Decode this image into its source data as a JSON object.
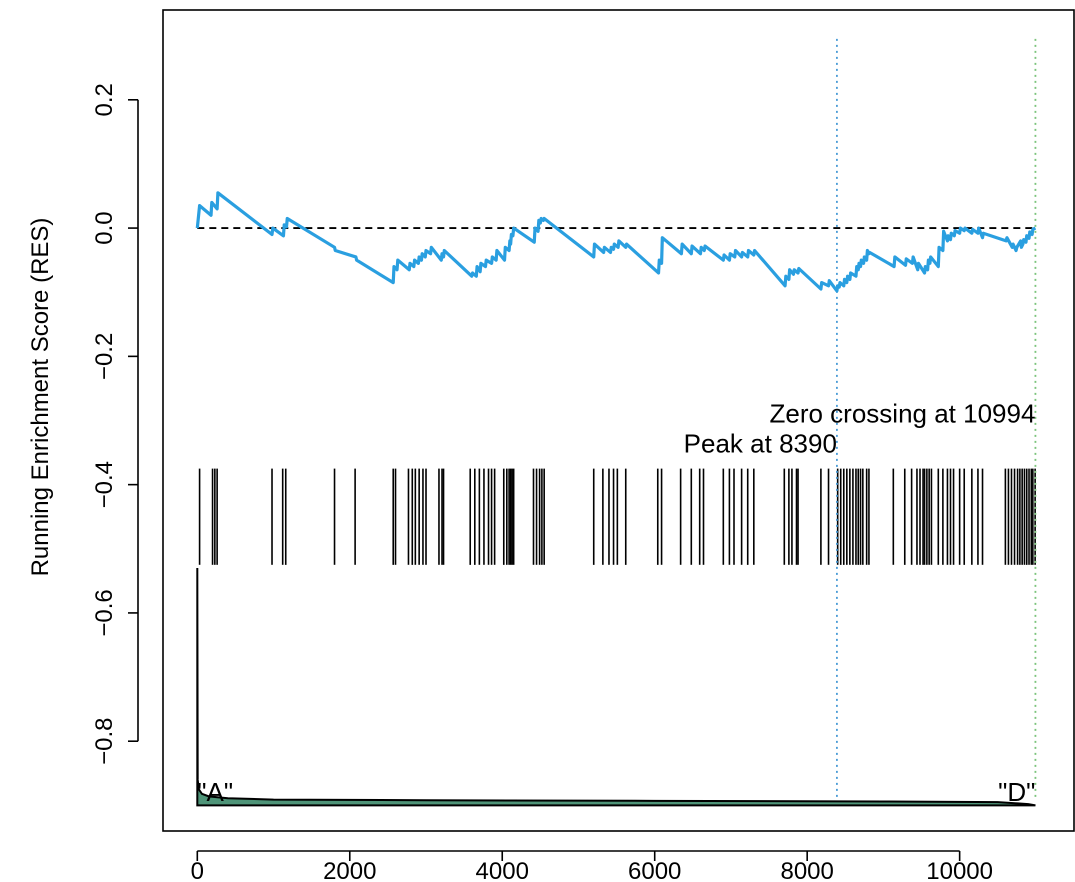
{
  "chart_data": {
    "type": "line",
    "title": "",
    "xlabel": "",
    "ylabel": "Running Enrichment Score (RES)",
    "xlim": [
      -450,
      11500
    ],
    "ylim": [
      -0.94,
      0.34
    ],
    "xticks": [
      0,
      2000,
      4000,
      6000,
      8000,
      10000
    ],
    "xtick_labels": [
      "0",
      "2000",
      "4000",
      "6000",
      "8000",
      "10000"
    ],
    "yticks": [
      0.2,
      0.0,
      -0.2,
      -0.4,
      -0.6,
      -0.8
    ],
    "ytick_labels": [
      "0.2",
      "0.0",
      "−0.2",
      "−0.4",
      "−0.6",
      "−0.8"
    ],
    "grid": false,
    "series": [
      {
        "color": "#2a9fe0",
        "x": [
          0,
          30,
          180,
          190,
          260,
          270,
          980,
          990,
          1130,
          1140,
          1170,
          1180,
          1800,
          1810,
          2080,
          2090,
          2570,
          2580,
          2620,
          2630,
          2780,
          2790,
          2840,
          2850,
          2900,
          2910,
          2940,
          2950,
          2990,
          3000,
          3060,
          3070,
          3200,
          3210,
          3230,
          3240,
          3600,
          3610,
          3660,
          3670,
          3710,
          3720,
          3780,
          3790,
          3860,
          3870,
          3920,
          3930,
          4030,
          4040,
          4090,
          4100,
          4110,
          4120,
          4140,
          4150,
          4420,
          4430,
          4470,
          4480,
          4500,
          4510,
          4540,
          4550,
          5200,
          5210,
          5330,
          5340,
          5420,
          5430,
          5460,
          5470,
          5520,
          5530,
          5620,
          5630,
          6050,
          6060,
          6090,
          6100,
          6350,
          6360,
          6480,
          6490,
          6600,
          6610,
          6650,
          6660,
          6900,
          6910,
          6980,
          6990,
          7050,
          7060,
          7140,
          7150,
          7220,
          7230,
          7300,
          7310,
          7710,
          7720,
          7760,
          7770,
          7820,
          7830,
          7880,
          7890,
          8180,
          8190,
          8280,
          8290,
          8390,
          8400,
          8420,
          8430,
          8480,
          8490,
          8520,
          8530,
          8560,
          8570,
          8640,
          8650,
          8670,
          8680,
          8700,
          8710,
          8740,
          8750,
          8780,
          8790,
          8810,
          8820,
          9140,
          9150,
          9290,
          9300,
          9380,
          9390,
          9450,
          9460,
          9540,
          9550,
          9580,
          9590,
          9610,
          9620,
          9720,
          9730,
          9780,
          9790,
          9840,
          9850,
          9880,
          9890,
          9930,
          9940,
          10000,
          10010,
          10060,
          10070,
          10160,
          10170,
          10240,
          10250,
          10300,
          10310,
          10610,
          10620,
          10690,
          10700,
          10740,
          10750,
          10800,
          10810,
          10830,
          10840,
          10870,
          10880,
          10910,
          10920,
          10950,
          10960,
          10994
        ],
        "y": [
          0.0,
          0.035,
          0.02,
          0.04,
          0.03,
          0.055,
          -0.01,
          0.0,
          -0.012,
          0.005,
          0.002,
          0.015,
          -0.03,
          -0.035,
          -0.045,
          -0.05,
          -0.085,
          -0.06,
          -0.065,
          -0.05,
          -0.065,
          -0.055,
          -0.06,
          -0.05,
          -0.055,
          -0.045,
          -0.05,
          -0.04,
          -0.045,
          -0.035,
          -0.04,
          -0.03,
          -0.05,
          -0.04,
          -0.045,
          -0.035,
          -0.075,
          -0.07,
          -0.075,
          -0.06,
          -0.068,
          -0.055,
          -0.06,
          -0.05,
          -0.055,
          -0.045,
          -0.05,
          -0.035,
          -0.05,
          -0.03,
          -0.035,
          -0.02,
          -0.025,
          -0.01,
          -0.012,
          0.0,
          -0.022,
          0.0,
          -0.005,
          0.012,
          0.008,
          0.015,
          0.012,
          0.015,
          -0.045,
          -0.025,
          -0.038,
          -0.03,
          -0.038,
          -0.03,
          -0.033,
          -0.025,
          -0.03,
          -0.02,
          -0.03,
          -0.025,
          -0.07,
          -0.05,
          -0.055,
          -0.015,
          -0.04,
          -0.025,
          -0.04,
          -0.028,
          -0.04,
          -0.03,
          -0.035,
          -0.028,
          -0.05,
          -0.042,
          -0.05,
          -0.04,
          -0.045,
          -0.035,
          -0.045,
          -0.038,
          -0.045,
          -0.035,
          -0.042,
          -0.035,
          -0.09,
          -0.075,
          -0.08,
          -0.065,
          -0.072,
          -0.065,
          -0.07,
          -0.063,
          -0.095,
          -0.085,
          -0.09,
          -0.082,
          -0.098,
          -0.09,
          -0.092,
          -0.085,
          -0.09,
          -0.08,
          -0.085,
          -0.075,
          -0.08,
          -0.07,
          -0.075,
          -0.06,
          -0.065,
          -0.055,
          -0.06,
          -0.05,
          -0.055,
          -0.045,
          -0.05,
          -0.035,
          -0.04,
          -0.038,
          -0.06,
          -0.045,
          -0.058,
          -0.048,
          -0.055,
          -0.045,
          -0.065,
          -0.055,
          -0.07,
          -0.06,
          -0.065,
          -0.05,
          -0.055,
          -0.045,
          -0.06,
          -0.03,
          -0.035,
          -0.005,
          -0.02,
          -0.012,
          -0.018,
          -0.008,
          -0.012,
          -0.004,
          -0.008,
          0.0,
          -0.004,
          0.0,
          -0.008,
          -0.002,
          -0.008,
          0.0,
          -0.015,
          -0.008,
          -0.02,
          -0.015,
          -0.03,
          -0.025,
          -0.035,
          -0.03,
          -0.02,
          -0.03,
          -0.025,
          -0.018,
          -0.022,
          -0.012,
          -0.016,
          -0.006,
          -0.01,
          -0.002,
          0.0
        ]
      }
    ],
    "zero_line": {
      "y": 0.0,
      "style": "dashed"
    },
    "hit_ticks": {
      "y_top": -0.375,
      "y_bottom": -0.525,
      "positions": [
        30,
        200,
        230,
        260,
        980,
        1120,
        1160,
        1800,
        2070,
        2570,
        2600,
        2770,
        2820,
        2860,
        2910,
        2960,
        3000,
        3170,
        3210,
        3230,
        3580,
        3640,
        3700,
        3760,
        3820,
        3860,
        3900,
        4020,
        4060,
        4090,
        4110,
        4130,
        4150,
        4410,
        4450,
        4490,
        4520,
        4550,
        5200,
        5320,
        5400,
        5460,
        5510,
        5620,
        6040,
        6090,
        6340,
        6480,
        6590,
        6640,
        6900,
        6980,
        7040,
        7140,
        7220,
        7300,
        7700,
        7760,
        7800,
        7860,
        7880,
        8180,
        8280,
        8400,
        8440,
        8480,
        8520,
        8560,
        8600,
        8640,
        8670,
        8700,
        8730,
        8780,
        8810,
        9130,
        9280,
        9370,
        9440,
        9480,
        9520,
        9540,
        9570,
        9600,
        9630,
        9720,
        9780,
        9840,
        9880,
        9920,
        10000,
        10060,
        10160,
        10240,
        10300,
        10600,
        10640,
        10680,
        10720,
        10760,
        10790,
        10820,
        10850,
        10880,
        10910,
        10940,
        10960,
        10990
      ]
    },
    "metric_area": {
      "color": "#4e9478",
      "baseline": -0.9,
      "x": [
        0,
        5,
        20,
        60,
        150,
        400,
        1000,
        3000,
        6000,
        9000,
        10500,
        10900,
        10994
      ],
      "y": [
        -0.53,
        -0.86,
        -0.875,
        -0.882,
        -0.886,
        -0.889,
        -0.891,
        -0.892,
        -0.893,
        -0.894,
        -0.895,
        -0.898,
        -0.9
      ]
    },
    "vlines": [
      {
        "x": 8390,
        "color": "#4a9bd6",
        "style": "dotted"
      },
      {
        "x": 10994,
        "color": "#7cc47c",
        "style": "dotted"
      }
    ],
    "annotations": [
      {
        "text": "Zero crossing at 10994",
        "x": 10994,
        "y": -0.303,
        "anchor": "end"
      },
      {
        "text": "Peak at 8390",
        "x": 8390,
        "y": -0.35,
        "anchor": "end"
      },
      {
        "text": "\"A\"",
        "x": 0,
        "y": -0.893,
        "anchor": "start"
      },
      {
        "text": "\"D\"",
        "x": 10994,
        "y": -0.893,
        "anchor": "end"
      }
    ]
  }
}
